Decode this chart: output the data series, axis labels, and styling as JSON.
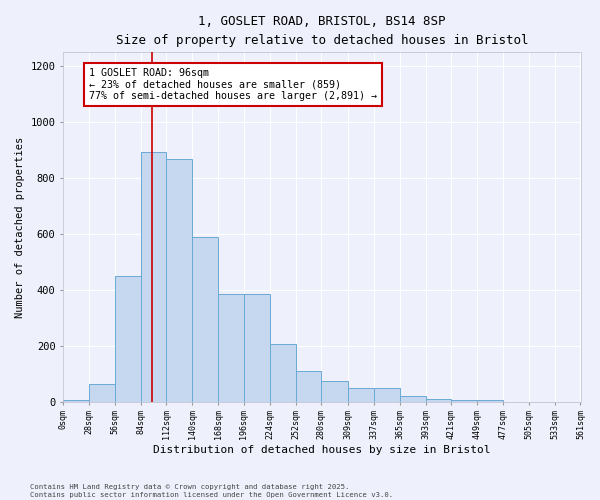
{
  "title_line1": "1, GOSLET ROAD, BRISTOL, BS14 8SP",
  "title_line2": "Size of property relative to detached houses in Bristol",
  "xlabel": "Distribution of detached houses by size in Bristol",
  "ylabel": "Number of detached properties",
  "bin_edges": [
    0,
    28,
    56,
    84,
    112,
    140,
    168,
    196,
    224,
    252,
    280,
    309,
    337,
    365,
    393,
    421,
    449,
    477,
    505,
    533,
    561
  ],
  "bar_heights": [
    8,
    65,
    450,
    895,
    870,
    590,
    385,
    385,
    205,
    110,
    75,
    50,
    50,
    20,
    10,
    5,
    5,
    0,
    0,
    0
  ],
  "bar_color": "#c5d8f0",
  "bar_edge_color": "#6aaad4",
  "vline_x": 96,
  "vline_color": "#cc0000",
  "annotation_text": "1 GOSLET ROAD: 96sqm\n← 23% of detached houses are smaller (859)\n77% of semi-detached houses are larger (2,891) →",
  "annotation_box_color": "#ffffff",
  "annotation_box_edge": "#cc0000",
  "ylim": [
    0,
    1250
  ],
  "xlim": [
    0,
    561
  ],
  "xtick_labels": [
    "0sqm",
    "28sqm",
    "56sqm",
    "84sqm",
    "112sqm",
    "140sqm",
    "168sqm",
    "196sqm",
    "224sqm",
    "252sqm",
    "280sqm",
    "309sqm",
    "337sqm",
    "365sqm",
    "393sqm",
    "421sqm",
    "449sqm",
    "477sqm",
    "505sqm",
    "533sqm",
    "561sqm"
  ],
  "xtick_values": [
    0,
    28,
    56,
    84,
    112,
    140,
    168,
    196,
    224,
    252,
    280,
    309,
    337,
    365,
    393,
    421,
    449,
    477,
    505,
    533,
    561
  ],
  "ytick_values": [
    0,
    200,
    400,
    600,
    800,
    1000,
    1200
  ],
  "background_color": "#eef1fb",
  "grid_color": "#ffffff",
  "footnote_line1": "Contains HM Land Registry data © Crown copyright and database right 2025.",
  "footnote_line2": "Contains public sector information licensed under the Open Government Licence v3.0."
}
